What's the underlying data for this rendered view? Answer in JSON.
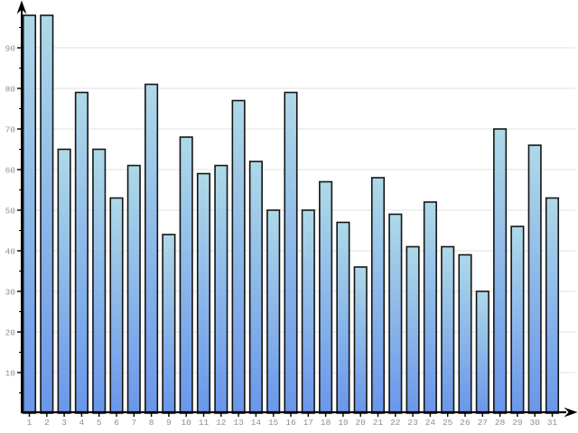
{
  "chart_data": {
    "type": "bar",
    "title": "",
    "xlabel": "",
    "ylabel": "",
    "categories": [
      "1",
      "2",
      "3",
      "4",
      "5",
      "6",
      "7",
      "8",
      "9",
      "10",
      "11",
      "12",
      "13",
      "14",
      "15",
      "16",
      "17",
      "18",
      "19",
      "20",
      "21",
      "22",
      "23",
      "24",
      "25",
      "26",
      "27",
      "28",
      "29",
      "30",
      "31"
    ],
    "values": [
      98,
      98,
      65,
      79,
      65,
      53,
      61,
      81,
      44,
      68,
      59,
      61,
      77,
      62,
      50,
      79,
      50,
      57,
      47,
      36,
      58,
      49,
      41,
      52,
      41,
      39,
      30,
      70,
      46,
      66,
      53
    ],
    "ylim": [
      0,
      100
    ],
    "y_major_ticks": [
      10,
      20,
      30,
      40,
      50,
      60,
      70,
      80,
      90
    ],
    "y_minor_ticks": [
      5,
      15,
      25,
      35,
      45,
      55,
      65,
      75,
      85,
      95
    ],
    "grid": "horizontal",
    "legend": "none",
    "colors": {
      "background": "#FFFFFF",
      "bar_gradient_top": "#AED9E8",
      "bar_gradient_bottom": "#6A96EA",
      "bar_outline": "#141414",
      "gridline": "#E7E7E7",
      "axis": "#000000",
      "tick_label": "#8F8F8F"
    }
  }
}
